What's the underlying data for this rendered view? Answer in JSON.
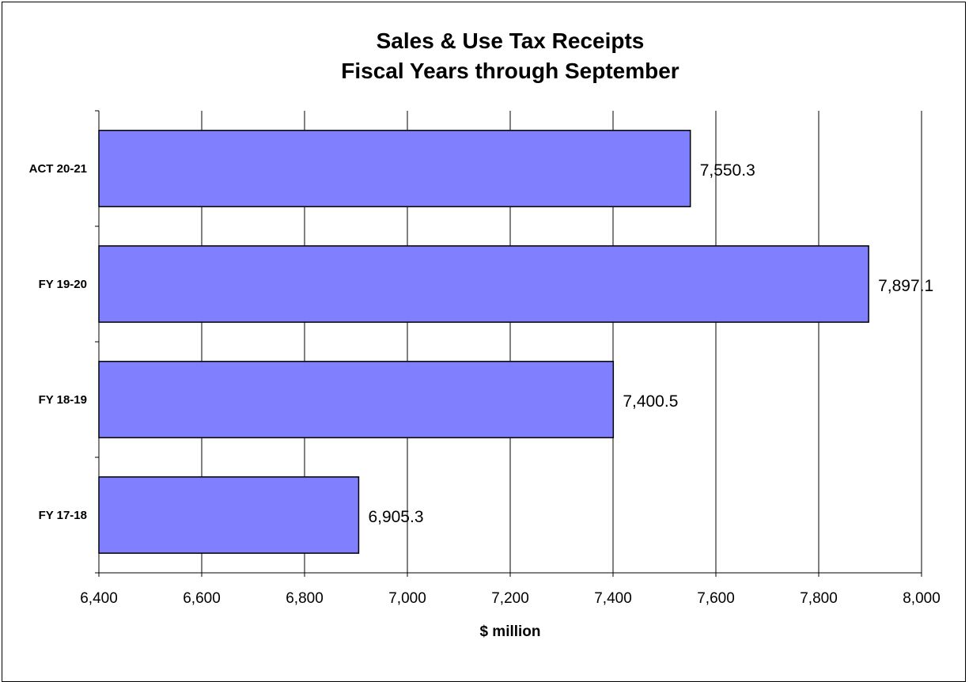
{
  "chart_data": {
    "type": "bar",
    "orientation": "horizontal",
    "title": [
      "Sales & Use Tax Receipts",
      "Fiscal Years through September"
    ],
    "xlabel": "$ million",
    "ylabel": "",
    "categories": [
      "ACT 20-21",
      "FY 19-20",
      "FY 18-19",
      "FY 17-18"
    ],
    "values": [
      7550.3,
      7897.1,
      7400.5,
      6905.3
    ],
    "value_labels": [
      "7,550.3",
      "7,897.1",
      "7,400.5",
      "6,905.3"
    ],
    "xlim": [
      6400,
      8000
    ],
    "xticks": [
      6400,
      6600,
      6800,
      7000,
      7200,
      7400,
      7600,
      7800,
      8000
    ],
    "xtick_labels": [
      "6,400",
      "6,600",
      "6,800",
      "7,000",
      "7,200",
      "7,400",
      "7,600",
      "7,800",
      "8,000"
    ],
    "grid": true,
    "legend": "none",
    "bar_color": "#8080FF"
  }
}
